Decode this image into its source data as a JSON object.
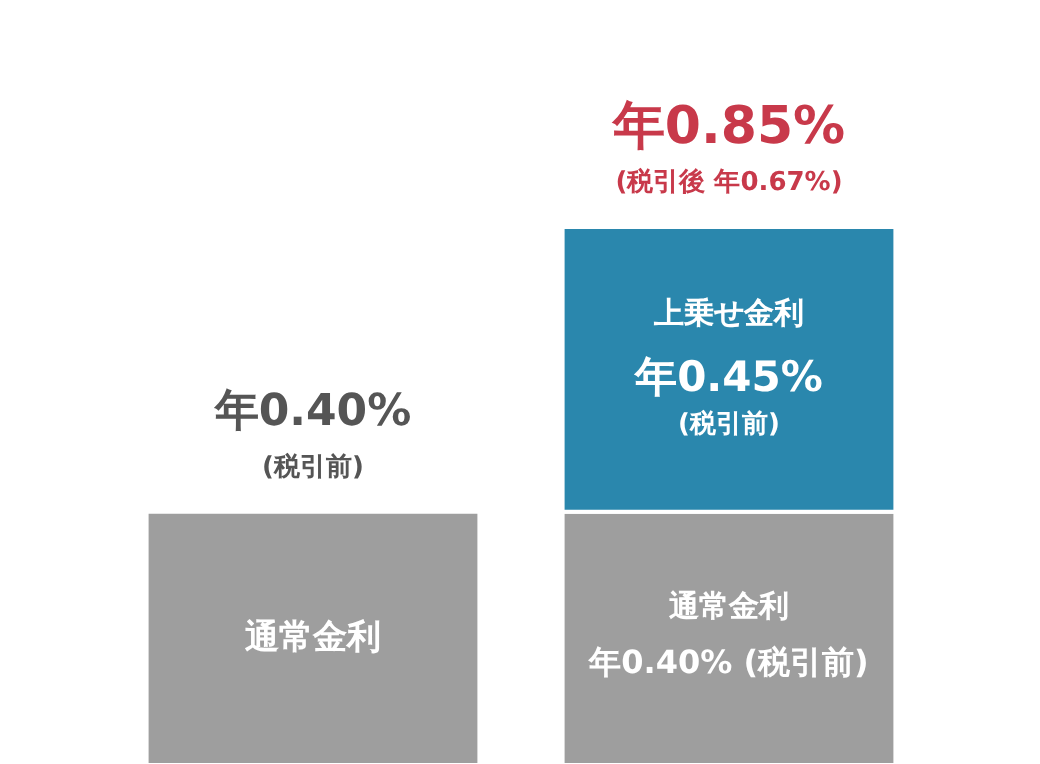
{
  "chart_data": {
    "type": "bar",
    "stacked": true,
    "categories": [
      null,
      null
    ],
    "series": [
      {
        "name": "通常金利",
        "color": "#9e9e9e",
        "values": [
          0.4,
          0.4
        ],
        "value_labels": [
          null,
          "年0.40% (税引前)"
        ]
      },
      {
        "name": "上乗せ金利",
        "color": "#2a87ad",
        "values": [
          null,
          0.45
        ],
        "value_labels": [
          null,
          "年0.45%"
        ]
      }
    ],
    "totals": [
      "年0.40%",
      "年0.85%"
    ],
    "annotations": [
      "(税引前)",
      "(税引後 年0.67%)",
      "(税引前)"
    ],
    "tick_labels": false,
    "grid": false
  }
}
